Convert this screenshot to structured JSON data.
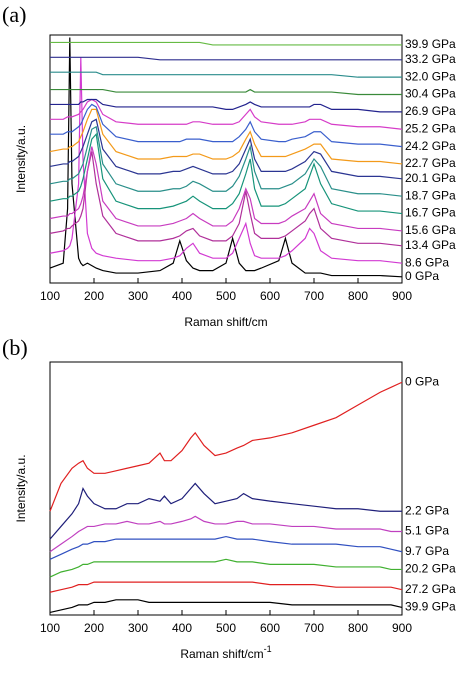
{
  "chart_data": [
    {
      "type": "line",
      "panel_label": "(a)",
      "x_label": "Raman shift/cm",
      "y_label": "Intensity/a.u.",
      "xlim": [
        100,
        900
      ],
      "xticks": [
        100,
        200,
        300,
        400,
        500,
        600,
        700,
        800,
        900
      ],
      "ylim": [
        0,
        100
      ],
      "x": [
        100,
        130,
        140,
        145,
        150,
        165,
        170,
        175,
        185,
        195,
        205,
        220,
        250,
        300,
        350,
        380,
        395,
        410,
        425,
        440,
        470,
        500,
        515,
        530,
        545,
        555,
        565,
        580,
        620,
        635,
        650,
        680,
        690,
        700,
        715,
        740,
        800,
        850,
        900
      ],
      "series": [
        {
          "name": "0 GPa",
          "color": "#000000",
          "values": [
            6,
            8,
            30,
            99,
            40,
            10,
            8,
            7,
            8,
            7,
            6,
            5,
            4,
            4,
            5,
            8,
            17,
            9,
            6,
            5,
            5,
            8,
            18,
            8,
            5,
            5,
            5,
            6,
            9,
            18,
            8,
            4,
            4,
            4,
            4,
            3,
            3,
            3,
            2.5
          ]
        },
        {
          "name": "8.6 GPa",
          "color": "#d23ad2",
          "values": [
            12,
            13,
            14,
            15,
            18,
            40,
            91,
            50,
            20,
            14,
            12,
            11,
            10,
            9,
            9,
            10,
            11,
            14,
            16,
            12,
            10,
            10,
            12,
            18,
            24,
            16,
            11,
            10,
            10,
            11,
            13,
            18,
            22,
            20,
            13,
            10,
            9,
            9,
            8
          ]
        },
        {
          "name": "13.4 GPa",
          "color": "#b0309a",
          "values": [
            20,
            21,
            22,
            22,
            23,
            25,
            27,
            30,
            45,
            53,
            40,
            27,
            20,
            17,
            17,
            18,
            19,
            21,
            22,
            19,
            17,
            17,
            19,
            24,
            37,
            28,
            20,
            18,
            18,
            19,
            21,
            25,
            28,
            30,
            22,
            18,
            16,
            16,
            15
          ]
        },
        {
          "name": "15.6 GPa",
          "color": "#c83cc0",
          "values": [
            26,
            27,
            27,
            28,
            28,
            30,
            32,
            35,
            45,
            55,
            48,
            33,
            26,
            23,
            23,
            24,
            25,
            26,
            28,
            26,
            23,
            23,
            25,
            30,
            38,
            34,
            26,
            24,
            24,
            25,
            27,
            30,
            33,
            36,
            28,
            24,
            22,
            22,
            21
          ]
        },
        {
          "name": "16.7 GPa",
          "color": "#17947a",
          "values": [
            33,
            34,
            34,
            35,
            35,
            37,
            39,
            42,
            50,
            58,
            60,
            42,
            33,
            30,
            30,
            31,
            32,
            33,
            35,
            33,
            30,
            30,
            32,
            36,
            44,
            50,
            38,
            31,
            31,
            32,
            34,
            38,
            43,
            48,
            40,
            32,
            29,
            29,
            28
          ]
        },
        {
          "name": "18.7 GPa",
          "color": "#2a8f8a",
          "values": [
            40,
            41,
            41,
            42,
            42,
            44,
            46,
            48,
            55,
            62,
            63,
            48,
            40,
            37,
            37,
            38,
            38,
            39,
            41,
            40,
            37,
            37,
            39,
            43,
            50,
            55,
            45,
            38,
            38,
            39,
            40,
            44,
            47,
            50,
            47,
            38,
            36,
            36,
            35
          ]
        },
        {
          "name": "20.1 GPa",
          "color": "#2b3592",
          "values": [
            47,
            48,
            48,
            49,
            49,
            51,
            53,
            55,
            60,
            65,
            66,
            54,
            47,
            44,
            44,
            45,
            45,
            46,
            47,
            46,
            44,
            44,
            45,
            48,
            54,
            58,
            50,
            45,
            45,
            45,
            46,
            49,
            51,
            53,
            52,
            45,
            43,
            43,
            42
          ]
        },
        {
          "name": "22.7 GPa",
          "color": "#f39a1a",
          "values": [
            53,
            54,
            54,
            55,
            55,
            57,
            59,
            61,
            66,
            70,
            70,
            60,
            53,
            50,
            50,
            51,
            51,
            51,
            52,
            52,
            50,
            50,
            51,
            53,
            58,
            61,
            56,
            51,
            51,
            51,
            52,
            54,
            55,
            56,
            56,
            50,
            49,
            49,
            48
          ]
        },
        {
          "name": "24.2 GPa",
          "color": "#3a5fcd",
          "values": [
            60,
            60,
            61,
            61,
            61,
            63,
            64,
            66,
            70,
            72,
            71,
            64,
            59,
            57,
            57,
            57,
            57,
            58,
            58,
            58,
            57,
            57,
            57,
            59,
            62,
            65,
            61,
            58,
            57,
            57,
            58,
            59,
            60,
            61,
            61,
            57,
            56,
            56,
            55
          ]
        },
        {
          "name": "25.2 GPa",
          "color": "#d63cc8",
          "values": [
            66,
            66,
            67,
            67,
            67,
            68,
            69,
            70,
            73,
            74,
            73,
            68,
            65,
            64,
            64,
            64,
            64,
            64,
            65,
            65,
            64,
            64,
            64,
            65,
            68,
            70,
            67,
            65,
            64,
            64,
            64,
            65,
            66,
            66,
            66,
            64,
            63,
            63,
            62
          ]
        },
        {
          "name": "26.9 GPa",
          "color": "#23238e",
          "values": [
            72,
            72,
            72,
            72,
            72,
            72,
            73,
            73,
            74,
            74,
            74,
            72,
            71,
            71,
            71,
            71,
            71,
            71,
            71,
            71,
            71,
            70,
            70,
            71,
            72,
            73,
            72,
            71,
            71,
            71,
            71,
            71,
            71,
            72,
            72,
            70,
            70,
            69,
            69
          ]
        },
        {
          "name": "30.4 GPa",
          "color": "#3a8a3a",
          "values": [
            78,
            78,
            78,
            78,
            78,
            78,
            78,
            78,
            78,
            78,
            78,
            78,
            77,
            77,
            77,
            77,
            77,
            77,
            77,
            77,
            77,
            77,
            77,
            77,
            77,
            78,
            77,
            77,
            77,
            77,
            77,
            77,
            77,
            77,
            77,
            77,
            76,
            76,
            76
          ]
        },
        {
          "name": "32.0 GPa",
          "color": "#2a8c8c",
          "values": [
            85,
            85,
            85,
            85,
            85,
            85,
            85,
            85,
            85,
            85,
            85,
            84,
            84,
            84,
            84,
            84,
            84,
            84,
            84,
            84,
            84,
            84,
            84,
            84,
            84,
            84,
            84,
            84,
            84,
            84,
            84,
            84,
            84,
            84,
            84,
            84,
            83,
            83,
            83
          ]
        },
        {
          "name": "33.2 GPa",
          "color": "#2e2e8f",
          "values": [
            91,
            91,
            91,
            91,
            91,
            91,
            91,
            91,
            91,
            91,
            91,
            91,
            91,
            91,
            90,
            90,
            90,
            90,
            90,
            90,
            90,
            90,
            90,
            90,
            90,
            90,
            90,
            90,
            90,
            90,
            90,
            90,
            90,
            90,
            90,
            90,
            90,
            90,
            90
          ]
        },
        {
          "name": "39.9 GPa",
          "color": "#66bb44",
          "values": [
            97,
            97,
            97,
            97,
            97,
            97,
            97,
            97,
            97,
            97,
            97,
            97,
            97,
            97,
            97,
            97,
            97,
            97,
            97,
            97,
            96,
            96,
            96,
            96,
            96,
            96,
            96,
            96,
            96,
            96,
            96,
            96,
            96,
            96,
            96,
            96,
            96,
            96,
            96
          ]
        }
      ]
    },
    {
      "type": "line",
      "panel_label": "(b)",
      "x_label": "Raman shift/cm",
      "x_label_superscript": "-1",
      "y_label": "Intensity/a.u.",
      "xlim": [
        100,
        900
      ],
      "xticks": [
        100,
        200,
        300,
        400,
        500,
        600,
        700,
        800,
        900
      ],
      "ylim": [
        0,
        100
      ],
      "x": [
        100,
        125,
        150,
        165,
        175,
        185,
        200,
        225,
        250,
        275,
        300,
        325,
        350,
        360,
        375,
        400,
        420,
        430,
        450,
        475,
        500,
        525,
        540,
        560,
        600,
        650,
        700,
        750,
        800,
        850,
        875,
        900
      ],
      "series": [
        {
          "name": "0 GPa",
          "color": "#e02020",
          "values": [
            41,
            52,
            58,
            60,
            61,
            58,
            56,
            56,
            57,
            58,
            59,
            60,
            64,
            61,
            61,
            65,
            70,
            72,
            67,
            63,
            64,
            66,
            67,
            69,
            70,
            72,
            75,
            78,
            83,
            88,
            90,
            92
          ]
        },
        {
          "name": "2.2 GPa",
          "color": "#1f1f7a",
          "values": [
            30,
            35,
            40,
            44,
            50,
            47,
            44,
            42,
            42,
            44,
            44,
            46,
            45,
            47,
            44,
            46,
            50,
            52,
            48,
            44,
            45,
            46,
            48,
            46,
            45,
            44,
            43,
            42,
            42,
            41,
            41,
            41
          ]
        },
        {
          "name": "5.1 GPa",
          "color": "#c040c0",
          "values": [
            25,
            28,
            31,
            33,
            34,
            35,
            35,
            36,
            36,
            37,
            36,
            36,
            37,
            36,
            36,
            37,
            38,
            39,
            37,
            36,
            36,
            37,
            37,
            36,
            36,
            35,
            35,
            34,
            34,
            34,
            33,
            33
          ]
        },
        {
          "name": "9.7 GPa",
          "color": "#3050c0",
          "values": [
            22,
            24,
            26,
            27,
            28,
            28,
            29,
            29,
            30,
            30,
            30,
            30,
            30,
            30,
            30,
            30,
            30,
            30,
            30,
            30,
            31,
            30,
            30,
            30,
            29,
            28,
            28,
            28,
            27,
            27,
            26,
            25
          ]
        },
        {
          "name": "20.2 GPa",
          "color": "#40b030",
          "values": [
            15,
            17,
            18,
            19,
            20,
            20,
            21,
            21,
            21,
            21,
            21,
            21,
            21,
            21,
            21,
            21,
            21,
            21,
            21,
            21,
            22,
            21,
            21,
            21,
            20,
            20,
            20,
            19,
            19,
            19,
            18,
            18
          ]
        },
        {
          "name": "27.2 GPa",
          "color": "#e02020",
          "values": [
            9,
            10,
            11,
            12,
            12,
            12,
            13,
            13,
            13,
            13,
            13,
            13,
            13,
            13,
            13,
            13,
            13,
            13,
            13,
            13,
            13,
            13,
            13,
            13,
            12,
            12,
            12,
            11,
            11,
            11,
            11,
            10
          ]
        },
        {
          "name": "39.9 GPa",
          "color": "#000000",
          "values": [
            1,
            2,
            3,
            4,
            4,
            4,
            5,
            5,
            6,
            6,
            6,
            5,
            5,
            5,
            5,
            5,
            5,
            5,
            5,
            5,
            5,
            5,
            5,
            5,
            5,
            4,
            4,
            4,
            4,
            4,
            4,
            3
          ]
        }
      ]
    }
  ]
}
